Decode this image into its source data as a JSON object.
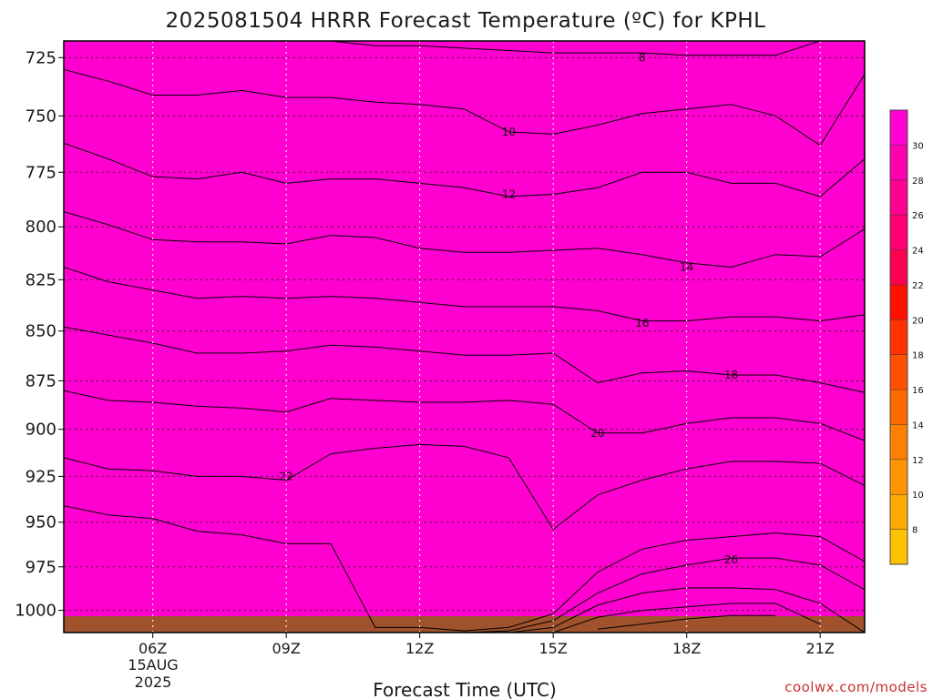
{
  "chart_data": {
    "type": "heatmap",
    "title": "2025081504 HRRR Forecast Temperature (ºC) for KPHL",
    "xlabel": "Forecast Time (UTC)",
    "ylabel": "",
    "y_axis": {
      "ticks": [
        725,
        750,
        775,
        800,
        825,
        850,
        875,
        900,
        925,
        950,
        975,
        1000
      ],
      "unit": "hPa",
      "inverted": true,
      "range": [
        1013,
        718
      ]
    },
    "x_axis": {
      "ticks": [
        "06Z",
        "09Z",
        "12Z",
        "15Z",
        "18Z",
        "21Z"
      ],
      "range_hours": [
        4,
        22
      ],
      "first_tick_sublabels": [
        "15AUG",
        "2025"
      ]
    },
    "colorbar": {
      "levels": [
        6,
        8,
        10,
        12,
        14,
        16,
        18,
        20,
        22,
        24,
        26,
        28,
        30,
        32
      ],
      "labels": [
        8,
        10,
        12,
        14,
        16,
        18,
        20,
        22,
        24,
        26,
        28,
        30
      ]
    },
    "fill_colors": [
      "#ffc200",
      "#ffaa00",
      "#ff9500",
      "#ff8000",
      "#ff6a00",
      "#ff5000",
      "#ff3200",
      "#ff1100",
      "#ff0050",
      "#ff0070",
      "#ff0090",
      "#ff00b0",
      "#ff00d0",
      "#ff00f0"
    ],
    "ground_color": "#a0522d",
    "hours": [
      4,
      5,
      6,
      7,
      8,
      9,
      10,
      11,
      12,
      13,
      14,
      15,
      16,
      17,
      18,
      19,
      20,
      21,
      22
    ],
    "isotherms": [
      {
        "level": 8,
        "label": "8",
        "label_at": [
          17.0,
          725
        ],
        "pressure": [
          718,
          718,
          718,
          718,
          718,
          718,
          718,
          720,
          720,
          721,
          722,
          723,
          723,
          723,
          724,
          724,
          724,
          718,
          718
        ]
      },
      {
        "level": 10,
        "label": "10",
        "label_at": [
          14.0,
          757
        ],
        "pressure": [
          730,
          735,
          741,
          741,
          739,
          742,
          742,
          744,
          745,
          747,
          757,
          758,
          754,
          749,
          747,
          745,
          750,
          763,
          732
        ]
      },
      {
        "level": 12,
        "label": "12",
        "label_at": [
          14.0,
          785
        ],
        "pressure": [
          762,
          769,
          777,
          778,
          775,
          780,
          778,
          778,
          780,
          782,
          786,
          785,
          782,
          775,
          775,
          780,
          780,
          786,
          769
        ]
      },
      {
        "level": 14,
        "label": "14",
        "label_at": [
          18.0,
          819
        ],
        "pressure": [
          793,
          799,
          806,
          807,
          807,
          808,
          804,
          805,
          810,
          812,
          812,
          811,
          810,
          813,
          817,
          819,
          813,
          814,
          801
        ]
      },
      {
        "level": 16,
        "label": "16",
        "label_at": [
          17.0,
          846
        ],
        "pressure": [
          819,
          826,
          830,
          834,
          833,
          834,
          833,
          834,
          836,
          838,
          838,
          838,
          840,
          845,
          845,
          843,
          843,
          845,
          842
        ]
      },
      {
        "level": 18,
        "label": "18",
        "label_at": [
          19.0,
          872
        ],
        "pressure": [
          848,
          852,
          856,
          861,
          861,
          860,
          857,
          858,
          860,
          862,
          862,
          861,
          876,
          871,
          870,
          872,
          872,
          876,
          881
        ]
      },
      {
        "level": 20,
        "label": "20",
        "label_at": [
          16.0,
          902
        ],
        "pressure": [
          880,
          885,
          886,
          888,
          889,
          891,
          884,
          885,
          886,
          886,
          885,
          887,
          902,
          902,
          897,
          894,
          894,
          897,
          906
        ]
      },
      {
        "level": 22,
        "label": "22",
        "label_at": [
          9.0,
          925
        ],
        "pressure": [
          915,
          921,
          922,
          925,
          925,
          927,
          913,
          910,
          908,
          909,
          915,
          954,
          935,
          927,
          921,
          917,
          917,
          918,
          930
        ]
      },
      {
        "level": 24,
        "label": "",
        "label_at": null,
        "pressure": [
          941,
          946,
          948,
          955,
          957,
          962,
          962,
          1010,
          1010,
          1012,
          1010,
          1002,
          978,
          965,
          960,
          958,
          956,
          958,
          972
        ]
      },
      {
        "level": 26,
        "label": "26",
        "label_at": [
          19.0,
          971
        ],
        "pressure": [
          null,
          null,
          null,
          null,
          null,
          null,
          null,
          null,
          null,
          1013,
          1012,
          1006,
          990,
          979,
          974,
          970,
          970,
          974,
          988
        ]
      },
      {
        "level": 28,
        "label": "",
        "label_at": null,
        "pressure": [
          null,
          null,
          null,
          null,
          null,
          null,
          null,
          null,
          null,
          null,
          1013,
          1010,
          997,
          990,
          987,
          987,
          988,
          996,
          1013
        ]
      },
      {
        "level": 30,
        "label": "",
        "label_at": null,
        "pressure": [
          null,
          null,
          null,
          null,
          null,
          null,
          null,
          null,
          null,
          null,
          null,
          1013,
          1004,
          1000,
          998,
          996,
          996,
          1008,
          null
        ]
      },
      {
        "level": 32,
        "label": "",
        "label_at": null,
        "pressure": [
          null,
          null,
          null,
          null,
          null,
          null,
          null,
          null,
          null,
          null,
          null,
          null,
          1011,
          1008,
          1005,
          1003,
          1003,
          null,
          null
        ]
      }
    ],
    "grid": true,
    "legend": "colorbar-right"
  },
  "credit": "coolwx.com/models"
}
